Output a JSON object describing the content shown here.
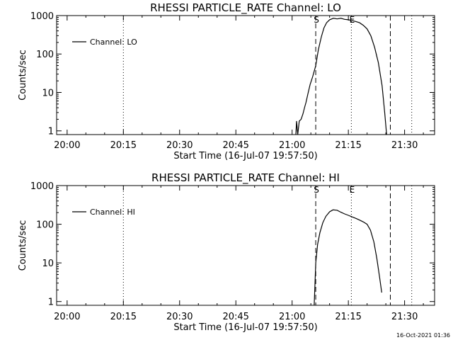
{
  "chart_data": [
    {
      "type": "line",
      "title": "RHESSI PARTICLE_RATE Channel: LO",
      "xlabel": "Start Time (16-Jul-07 19:57:50)",
      "ylabel": "Counts/sec",
      "y_scale": "log",
      "ylim": [
        0.8,
        1000
      ],
      "xlim_minutes": [
        -2.8,
        98
      ],
      "x_ticks": [
        {
          "label": "20:00",
          "minutes": 0
        },
        {
          "label": "20:15",
          "minutes": 15
        },
        {
          "label": "20:30",
          "minutes": 30
        },
        {
          "label": "20:45",
          "minutes": 45
        },
        {
          "label": "21:00",
          "minutes": 60
        },
        {
          "label": "21:15",
          "minutes": 75
        },
        {
          "label": "21:30",
          "minutes": 90
        }
      ],
      "y_ticks": [
        {
          "label": "1",
          "value": 1
        },
        {
          "label": "10",
          "value": 10
        },
        {
          "label": "100",
          "value": 100
        },
        {
          "label": "1000",
          "value": 1000
        }
      ],
      "legend": {
        "label": "Channel: LO",
        "position": "top-left"
      },
      "markers": [
        {
          "label": "S",
          "minutes": 66.3,
          "style": "dashed"
        },
        {
          "label": "E",
          "minutes": 75.8,
          "style": "none"
        },
        {
          "label": "",
          "minutes": 86.2,
          "style": "dashed"
        }
      ],
      "dotted_lines_minutes": [
        15,
        75.8,
        91.9
      ],
      "series": [
        {
          "name": "Channel: LO",
          "x_minutes": [
            61.0,
            61.2,
            61.5,
            61.9,
            62.4,
            62.9,
            63.3,
            63.7,
            64.2,
            64.8,
            65.5,
            66.3,
            67.0,
            67.8,
            68.5,
            69.2,
            70.0,
            71.0,
            72.0,
            73.0,
            74.0,
            75.0,
            76.0,
            77.0,
            78.0,
            79.0,
            80.0,
            81.0,
            82.0,
            83.0,
            84.0,
            84.7,
            85.2
          ],
          "y": [
            0.8,
            1.8,
            0.8,
            1.8,
            2.0,
            2.8,
            4.0,
            5.5,
            9.0,
            16,
            26,
            50,
            130,
            280,
            480,
            650,
            780,
            850,
            820,
            850,
            800,
            780,
            740,
            700,
            650,
            560,
            450,
            300,
            150,
            60,
            15,
            3.0,
            0.8
          ]
        }
      ]
    },
    {
      "type": "line",
      "title": "RHESSI PARTICLE_RATE Channel: HI",
      "xlabel": "Start Time (16-Jul-07 19:57:50)",
      "ylabel": "Counts/sec",
      "y_scale": "log",
      "ylim": [
        0.8,
        1000
      ],
      "xlim_minutes": [
        -2.8,
        98
      ],
      "x_ticks": [
        {
          "label": "20:00",
          "minutes": 0
        },
        {
          "label": "20:15",
          "minutes": 15
        },
        {
          "label": "20:30",
          "minutes": 30
        },
        {
          "label": "20:45",
          "minutes": 45
        },
        {
          "label": "21:00",
          "minutes": 60
        },
        {
          "label": "21:15",
          "minutes": 75
        },
        {
          "label": "21:30",
          "minutes": 90
        }
      ],
      "y_ticks": [
        {
          "label": "1",
          "value": 1
        },
        {
          "label": "10",
          "value": 10
        },
        {
          "label": "100",
          "value": 100
        },
        {
          "label": "1000",
          "value": 1000
        }
      ],
      "legend": {
        "label": "Channel: HI",
        "position": "top-left"
      },
      "markers": [
        {
          "label": "S",
          "minutes": 66.3,
          "style": "dashed"
        },
        {
          "label": "E",
          "minutes": 75.8,
          "style": "none"
        },
        {
          "label": "",
          "minutes": 86.2,
          "style": "dashed"
        }
      ],
      "dotted_lines_minutes": [
        15,
        75.8,
        91.9
      ],
      "series": [
        {
          "name": "Channel: HI",
          "x_minutes": [
            65.9,
            66.3,
            66.8,
            67.4,
            68.2,
            69.0,
            70.0,
            70.9,
            72.0,
            73.0,
            74.0,
            75.0,
            76.0,
            77.0,
            78.0,
            79.0,
            80.0,
            80.9,
            81.8,
            82.6,
            83.3,
            83.9
          ],
          "y": [
            0.8,
            10,
            30,
            60,
            110,
            160,
            210,
            235,
            230,
            205,
            185,
            170,
            155,
            142,
            128,
            115,
            100,
            70,
            35,
            13,
            4.5,
            1.7
          ]
        }
      ]
    }
  ],
  "timestamp": "16-Oct-2021 01:36"
}
